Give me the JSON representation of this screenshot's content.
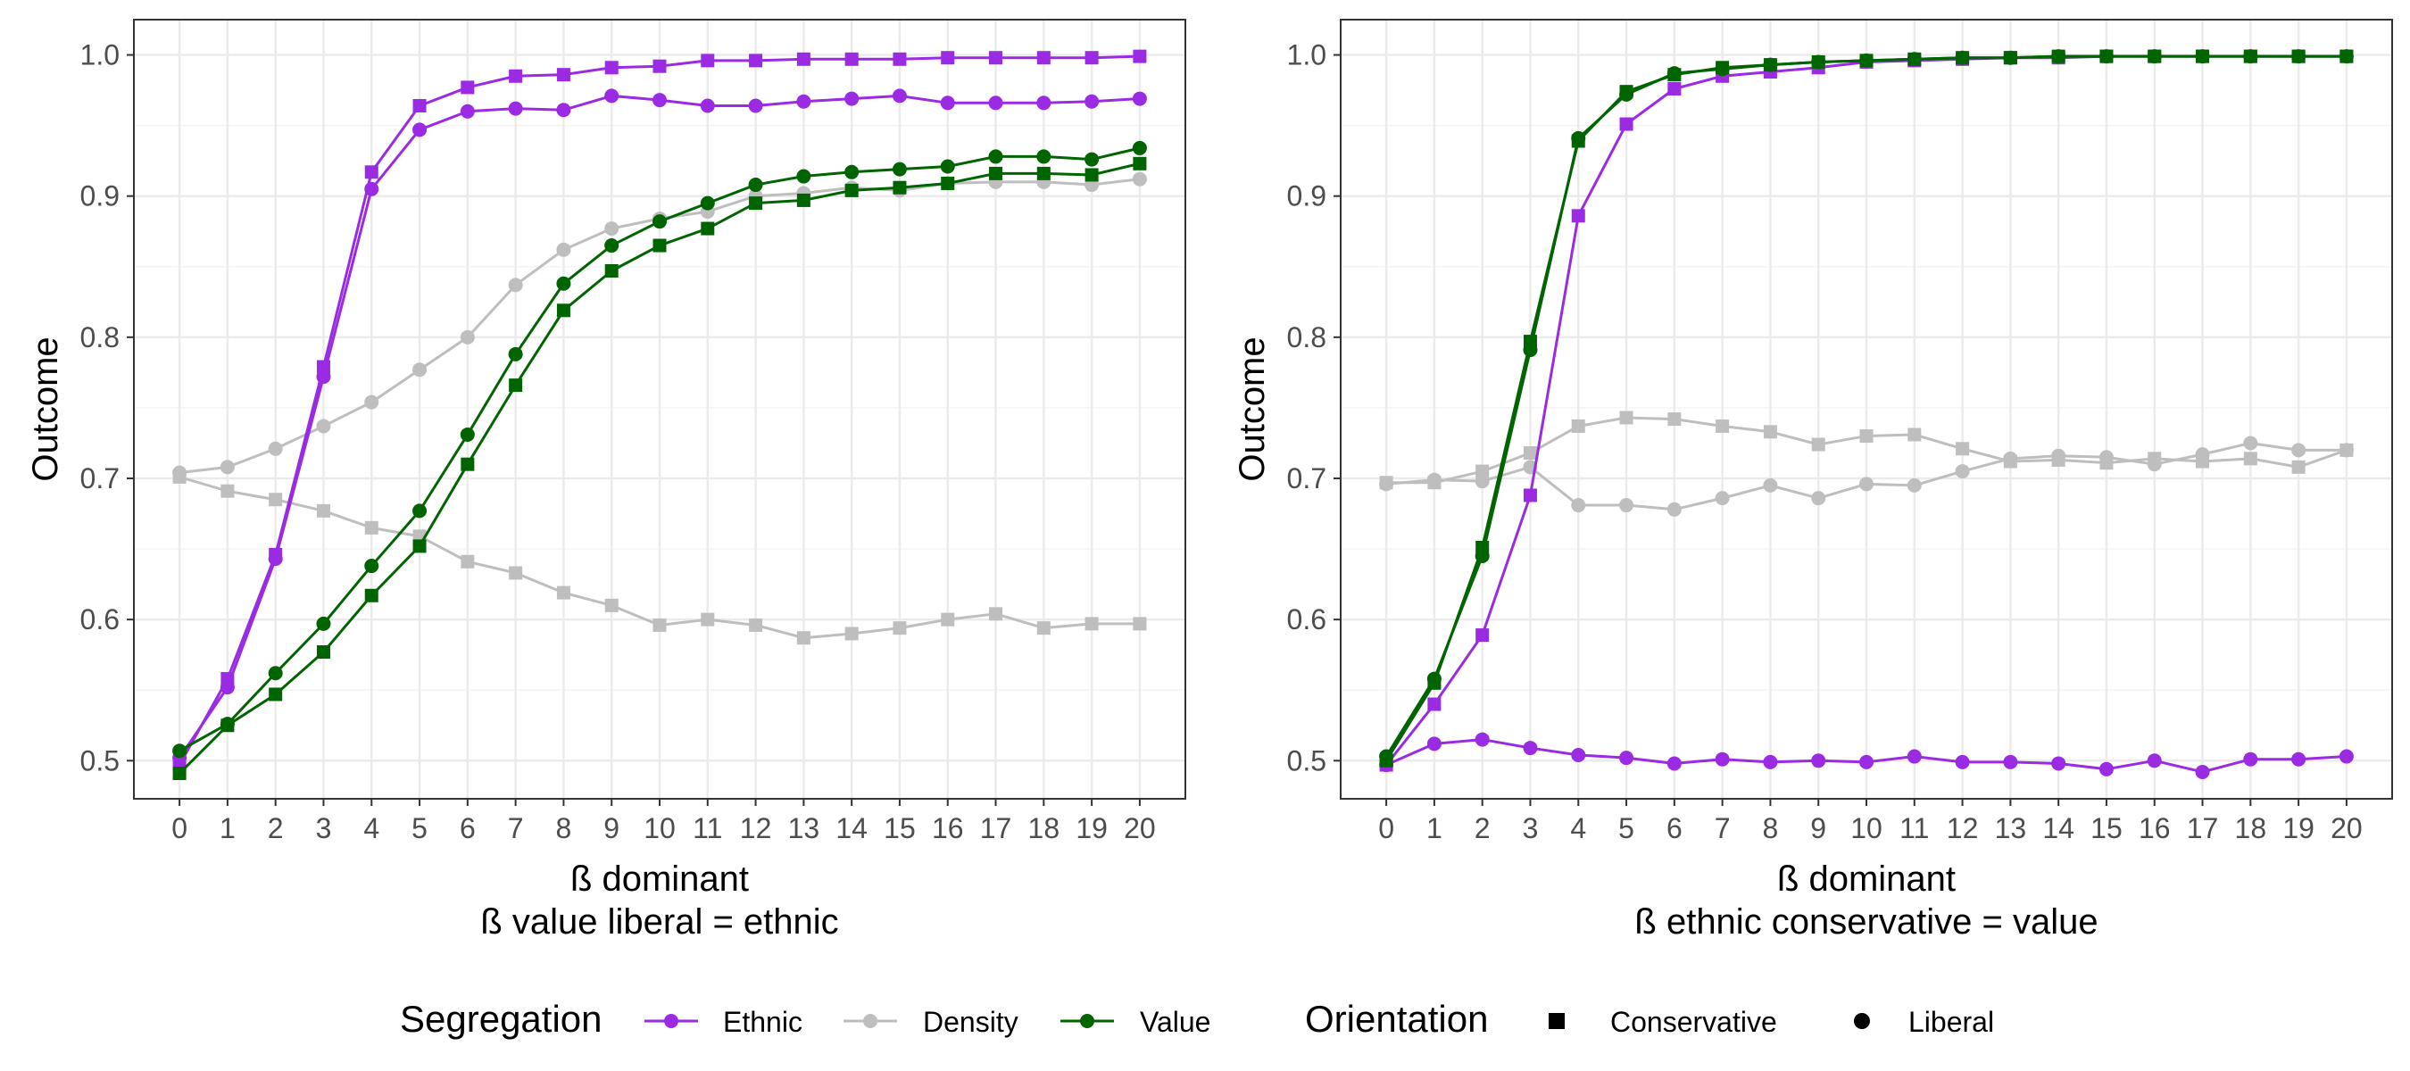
{
  "chart_data": [
    {
      "type": "line",
      "xlabel": "ß dominant",
      "subtitle": "ß value liberal = ethnic",
      "ylabel": "Outcome",
      "x": [
        0,
        1,
        2,
        3,
        4,
        5,
        6,
        7,
        8,
        9,
        10,
        11,
        12,
        13,
        14,
        15,
        16,
        17,
        18,
        19,
        20
      ],
      "xticks": [
        "0",
        "1",
        "2",
        "3",
        "4",
        "5",
        "6",
        "7",
        "8",
        "9",
        "10",
        "11",
        "12",
        "13",
        "14",
        "15",
        "16",
        "17",
        "18",
        "19",
        "20"
      ],
      "yticks": [
        "0.5",
        "0.6",
        "0.7",
        "0.8",
        "0.9",
        "1.0"
      ],
      "ytick_values": [
        0.5,
        0.6,
        0.7,
        0.8,
        0.9,
        1.0
      ],
      "xlim": [
        -0.95,
        20.95
      ],
      "ylim": [
        0.473,
        1.025
      ],
      "grid": true,
      "series": [
        {
          "segregation": "Ethnic",
          "orientation": "Conservative",
          "values": [
            0.497,
            0.558,
            0.646,
            0.779,
            0.917,
            0.964,
            0.977,
            0.985,
            0.986,
            0.991,
            0.992,
            0.996,
            0.996,
            0.997,
            0.997,
            0.997,
            0.998,
            0.998,
            0.998,
            0.998,
            0.999
          ]
        },
        {
          "segregation": "Ethnic",
          "orientation": "Liberal",
          "values": [
            0.502,
            0.552,
            0.643,
            0.772,
            0.905,
            0.947,
            0.96,
            0.962,
            0.961,
            0.971,
            0.968,
            0.964,
            0.964,
            0.967,
            0.969,
            0.971,
            0.966,
            0.966,
            0.966,
            0.967,
            0.969
          ]
        },
        {
          "segregation": "Density",
          "orientation": "Conservative",
          "values": [
            0.701,
            0.691,
            0.685,
            0.677,
            0.665,
            0.659,
            0.641,
            0.633,
            0.619,
            0.61,
            0.596,
            0.6,
            0.596,
            0.587,
            0.59,
            0.594,
            0.6,
            0.604,
            0.594,
            0.597,
            0.597
          ]
        },
        {
          "segregation": "Density",
          "orientation": "Liberal",
          "values": [
            0.704,
            0.708,
            0.721,
            0.737,
            0.754,
            0.777,
            0.8,
            0.837,
            0.862,
            0.877,
            0.884,
            0.889,
            0.9,
            0.902,
            0.906,
            0.904,
            0.909,
            0.91,
            0.91,
            0.908,
            0.912
          ]
        },
        {
          "segregation": "Value",
          "orientation": "Conservative",
          "values": [
            0.491,
            0.525,
            0.547,
            0.577,
            0.617,
            0.652,
            0.71,
            0.766,
            0.819,
            0.847,
            0.865,
            0.877,
            0.895,
            0.897,
            0.904,
            0.906,
            0.909,
            0.916,
            0.916,
            0.915,
            0.923
          ]
        },
        {
          "segregation": "Value",
          "orientation": "Liberal",
          "values": [
            0.507,
            0.526,
            0.562,
            0.597,
            0.638,
            0.677,
            0.731,
            0.788,
            0.838,
            0.865,
            0.882,
            0.895,
            0.908,
            0.914,
            0.917,
            0.919,
            0.921,
            0.928,
            0.928,
            0.926,
            0.934
          ]
        }
      ]
    },
    {
      "type": "line",
      "xlabel": "ß dominant",
      "subtitle": "ß ethnic conservative = value",
      "ylabel": "Outcome",
      "x": [
        0,
        1,
        2,
        3,
        4,
        5,
        6,
        7,
        8,
        9,
        10,
        11,
        12,
        13,
        14,
        15,
        16,
        17,
        18,
        19,
        20
      ],
      "xticks": [
        "0",
        "1",
        "2",
        "3",
        "4",
        "5",
        "6",
        "7",
        "8",
        "9",
        "10",
        "11",
        "12",
        "13",
        "14",
        "15",
        "16",
        "17",
        "18",
        "19",
        "20"
      ],
      "yticks": [
        "0.5",
        "0.6",
        "0.7",
        "0.8",
        "0.9",
        "1.0"
      ],
      "ytick_values": [
        0.5,
        0.6,
        0.7,
        0.8,
        0.9,
        1.0
      ],
      "xlim": [
        -0.95,
        20.95
      ],
      "ylim": [
        0.473,
        1.025
      ],
      "grid": true,
      "series": [
        {
          "segregation": "Ethnic",
          "orientation": "Conservative",
          "values": [
            0.497,
            0.54,
            0.589,
            0.688,
            0.886,
            0.951,
            0.976,
            0.985,
            0.988,
            0.991,
            0.995,
            0.996,
            0.997,
            0.998,
            0.998,
            0.999,
            0.999,
            0.999,
            0.999,
            0.999,
            0.999
          ]
        },
        {
          "segregation": "Ethnic",
          "orientation": "Liberal",
          "values": [
            0.497,
            0.512,
            0.515,
            0.509,
            0.504,
            0.502,
            0.498,
            0.501,
            0.499,
            0.5,
            0.499,
            0.503,
            0.499,
            0.499,
            0.498,
            0.494,
            0.5,
            0.492,
            0.501,
            0.501,
            0.503
          ]
        },
        {
          "segregation": "Density",
          "orientation": "Conservative",
          "values": [
            0.697,
            0.697,
            0.705,
            0.718,
            0.737,
            0.743,
            0.742,
            0.737,
            0.733,
            0.724,
            0.73,
            0.731,
            0.721,
            0.712,
            0.713,
            0.711,
            0.714,
            0.712,
            0.714,
            0.708,
            0.72
          ]
        },
        {
          "segregation": "Density",
          "orientation": "Liberal",
          "values": [
            0.696,
            0.699,
            0.698,
            0.708,
            0.681,
            0.681,
            0.678,
            0.686,
            0.695,
            0.686,
            0.696,
            0.695,
            0.705,
            0.714,
            0.716,
            0.715,
            0.71,
            0.717,
            0.725,
            0.72,
            0.72
          ]
        },
        {
          "segregation": "Value",
          "orientation": "Conservative",
          "values": [
            0.5,
            0.555,
            0.651,
            0.797,
            0.939,
            0.974,
            0.986,
            0.991,
            0.993,
            0.995,
            0.996,
            0.997,
            0.998,
            0.998,
            0.999,
            0.999,
            0.999,
            0.999,
            0.999,
            0.999,
            0.999
          ]
        },
        {
          "segregation": "Value",
          "orientation": "Liberal",
          "values": [
            0.503,
            0.558,
            0.645,
            0.791,
            0.941,
            0.972,
            0.987,
            0.99,
            0.993,
            0.995,
            0.996,
            0.997,
            0.998,
            0.998,
            0.999,
            0.999,
            0.999,
            0.999,
            0.999,
            0.999,
            0.999
          ]
        }
      ]
    }
  ],
  "colors": {
    "Ethnic": "#9A2BE2",
    "Density": "#BEBEBE",
    "Value": "#006400",
    "panel_border": "#333333",
    "grid_major": "#EBEBEB",
    "grid_minor": "#F5F5F5",
    "tick_text": "#4D4D4D"
  },
  "legend": {
    "position": "bottom",
    "segregation_title": "Segregation",
    "segregation_items": [
      {
        "label": "Ethnic",
        "key": "Ethnic"
      },
      {
        "label": "Density",
        "key": "Density"
      },
      {
        "label": "Value",
        "key": "Value"
      }
    ],
    "orientation_title": "Orientation",
    "orientation_items": [
      {
        "label": "Conservative",
        "shape": "square"
      },
      {
        "label": "Liberal",
        "shape": "circle"
      }
    ]
  }
}
